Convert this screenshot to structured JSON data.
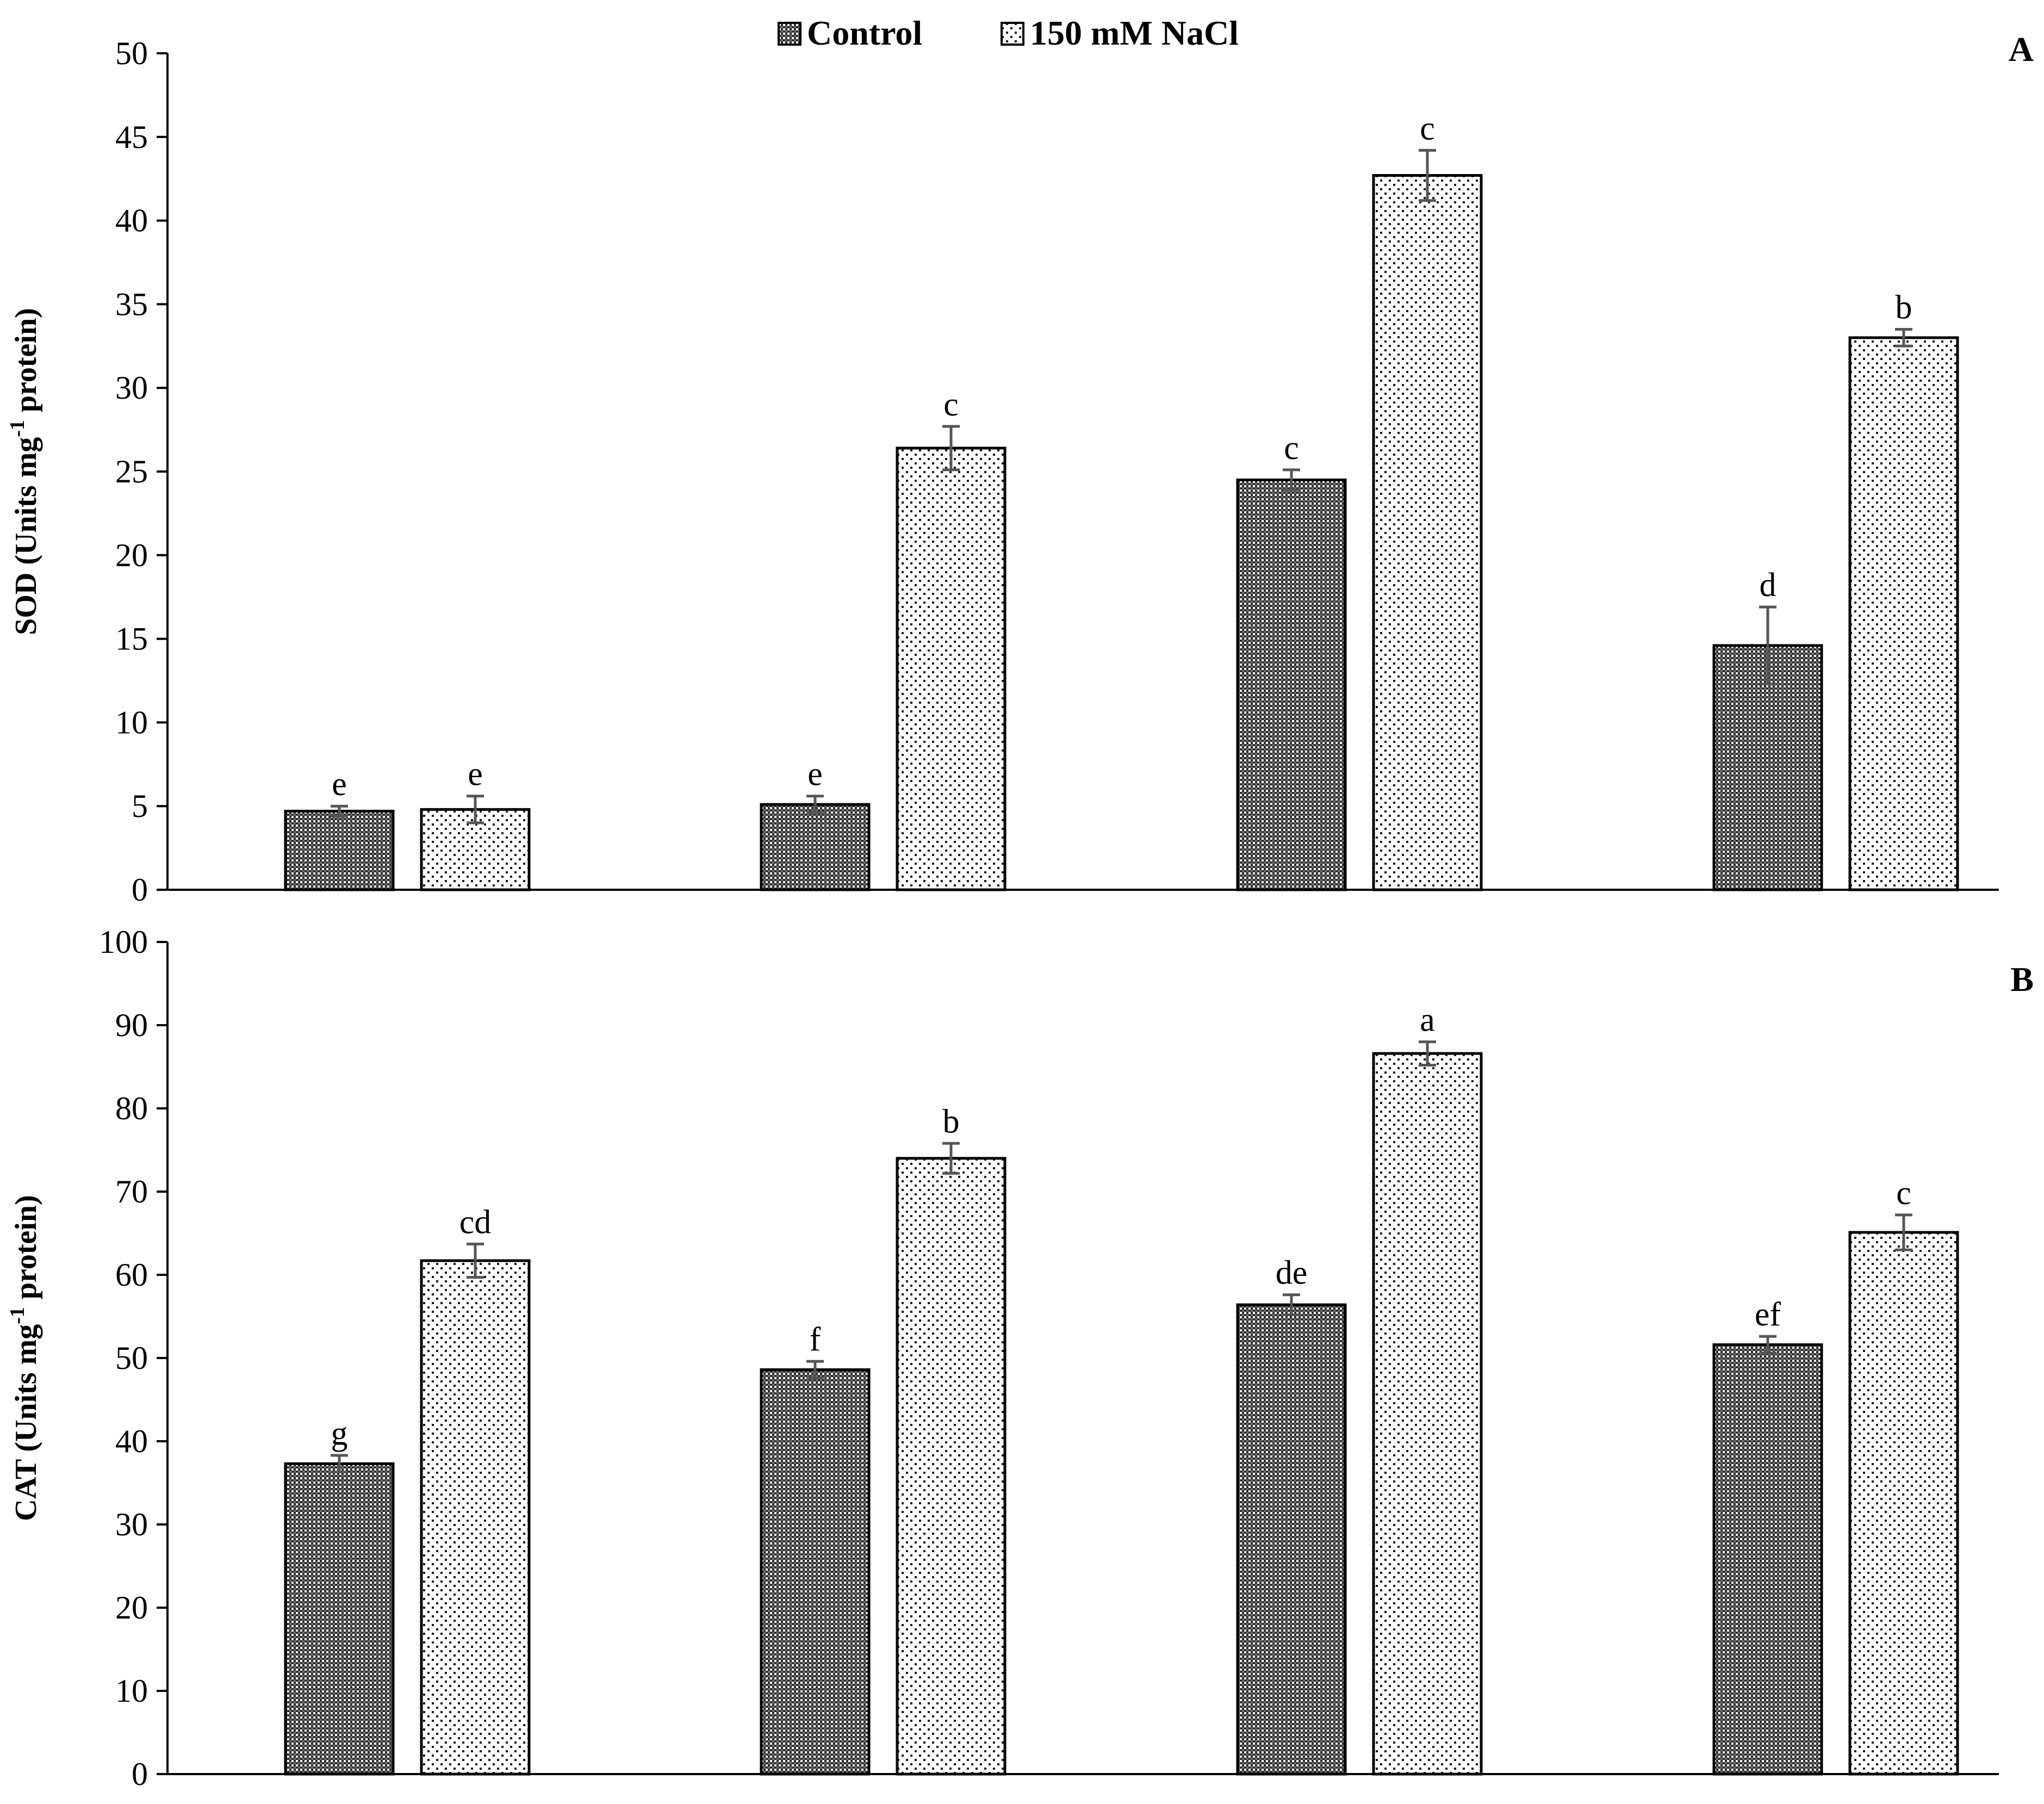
{
  "legend": {
    "control_label": "Control",
    "salt_label": "150 mM NaCl",
    "control_color": "#4a4a4a",
    "salt_color": "#ffffff"
  },
  "chart_data": [
    {
      "type": "bar",
      "panel_label": "A",
      "title": "",
      "xlabel": "",
      "ylabel": "SOD (Units mg-1 protein)",
      "ylabel_parts": {
        "before": "SOD (Units mg",
        "sup": "-1",
        "after": " protein)"
      },
      "ylim": [
        0,
        50
      ],
      "yticks": [
        0,
        5,
        10,
        15,
        20,
        25,
        30,
        35,
        40,
        45,
        50
      ],
      "categories": [
        "",
        "",
        "",
        ""
      ],
      "series": [
        {
          "name": "Control",
          "values": [
            4.7,
            5.1,
            24.5,
            14.6
          ],
          "errors": [
            0.3,
            0.5,
            0.6,
            2.3
          ],
          "labels": [
            "e",
            "e",
            "c",
            "d"
          ]
        },
        {
          "name": "150 mM NaCl",
          "values": [
            4.8,
            26.4,
            42.7,
            33.0
          ],
          "errors": [
            0.8,
            1.3,
            1.5,
            0.5
          ],
          "labels": [
            "e",
            "c",
            "c",
            "b"
          ]
        }
      ]
    },
    {
      "type": "bar",
      "panel_label": "B",
      "title": "",
      "xlabel": "",
      "ylabel": "CAT (Units mg-1 protein)",
      "ylabel_parts": {
        "before": "CAT (Units mg",
        "sup": "-1",
        "after": " protein)"
      },
      "ylim": [
        0,
        100
      ],
      "yticks": [
        0,
        10,
        20,
        30,
        40,
        50,
        60,
        70,
        80,
        90,
        100
      ],
      "categories": [
        "",
        "",
        "",
        ""
      ],
      "series": [
        {
          "name": "Control",
          "values": [
            37.3,
            48.6,
            56.4,
            51.6
          ],
          "errors": [
            1.0,
            1.0,
            1.2,
            1.0
          ],
          "labels": [
            "g",
            "f",
            "de",
            "ef"
          ]
        },
        {
          "name": "150 mM NaCl",
          "values": [
            61.7,
            74.0,
            86.6,
            65.1
          ],
          "errors": [
            2.0,
            1.8,
            1.4,
            2.1
          ],
          "labels": [
            "cd",
            "b",
            "a",
            "c"
          ]
        }
      ]
    }
  ]
}
